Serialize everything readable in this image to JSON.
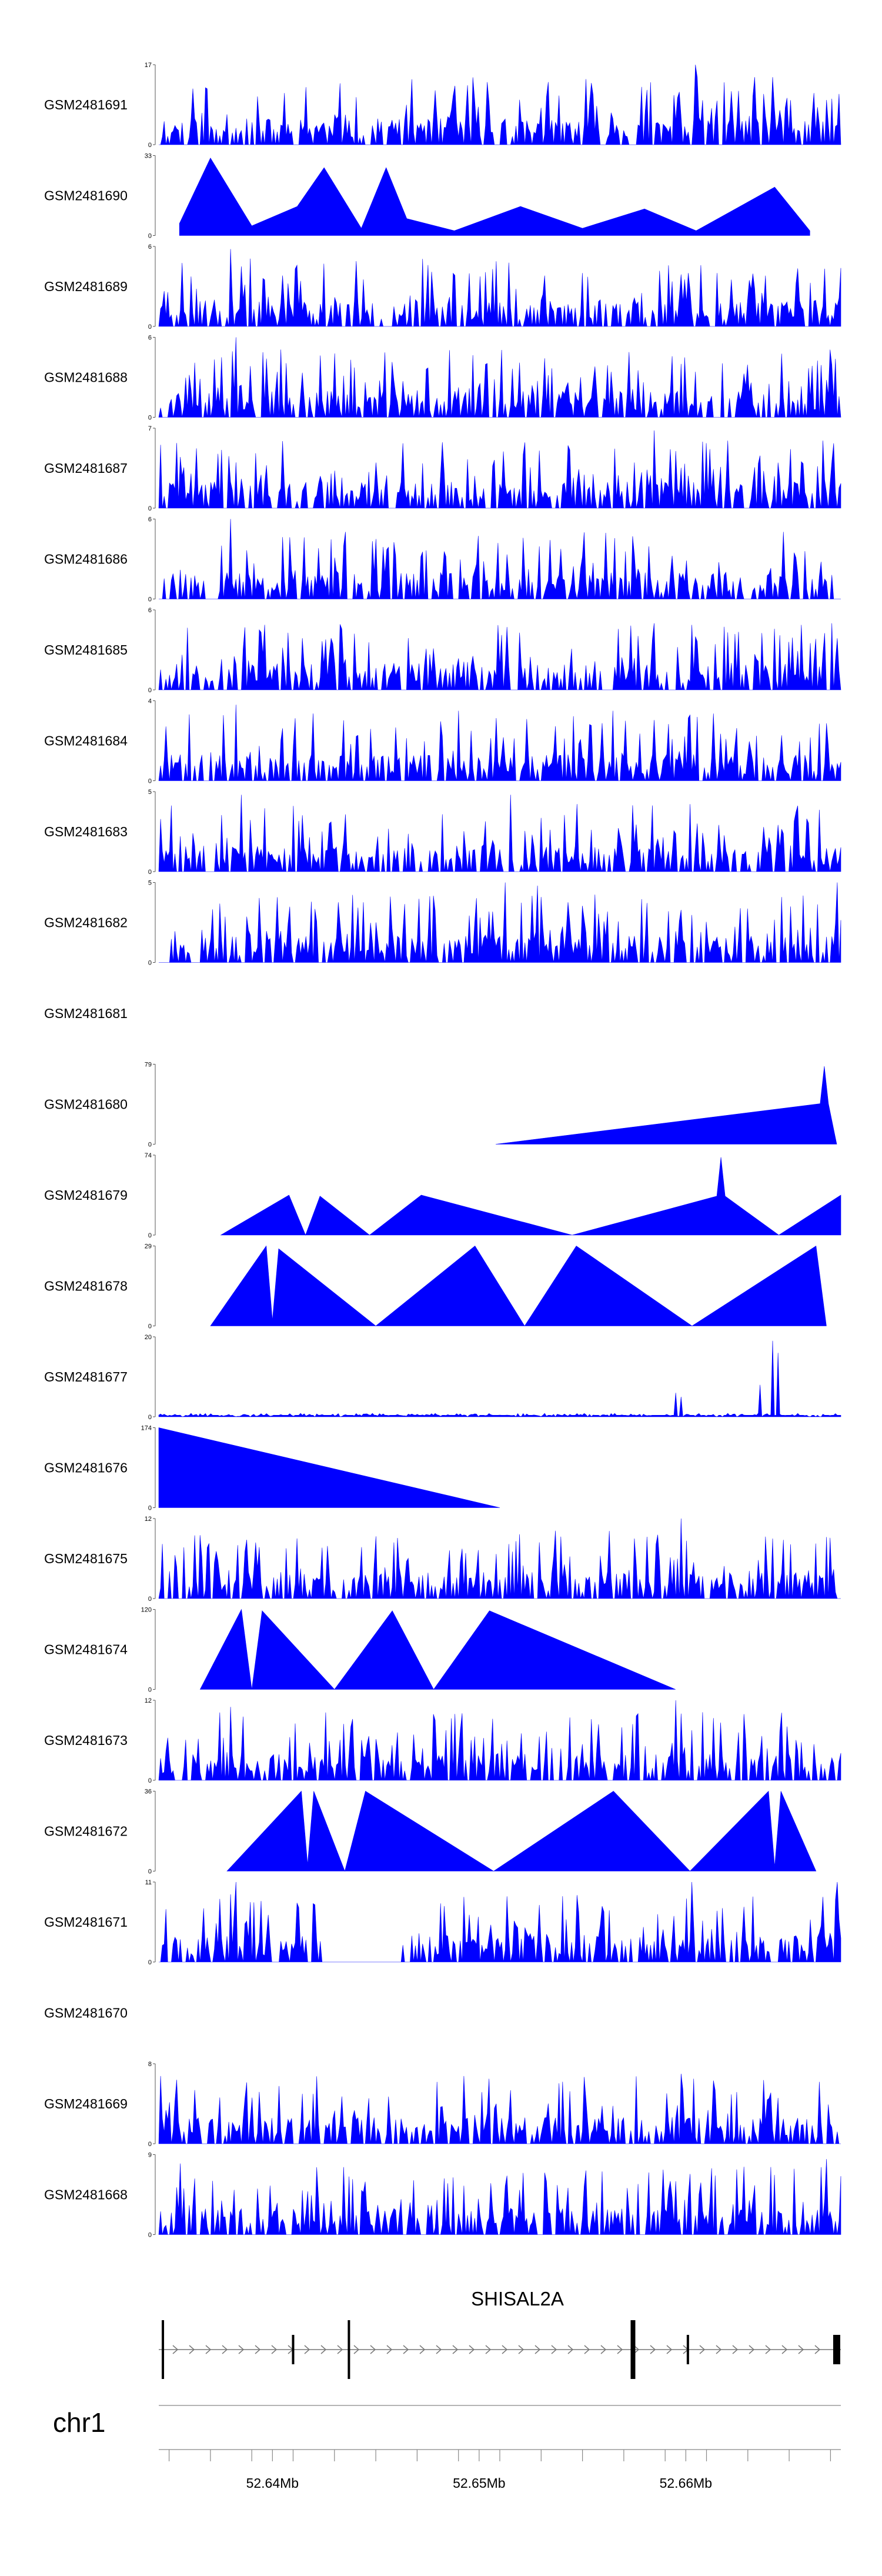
{
  "chart_data": {
    "type": "area",
    "title": "",
    "xlabel": "",
    "ylabel": "",
    "chromosome": "chr1",
    "x_range": [
      52.6345,
      52.6675
    ],
    "x_unit": "Mb",
    "x_ticks": [
      52.64,
      52.65,
      52.66
    ],
    "x_tick_labels": [
      "52.64Mb",
      "52.65Mb",
      "52.66Mb"
    ],
    "fill_color": "#0000ff",
    "gene": {
      "name": "SHISAL2A",
      "start": 52.6345,
      "end": 52.6675,
      "strand": "+",
      "exon_positions": [
        52.6347,
        52.641,
        52.6437,
        52.6575,
        52.6601,
        52.6673
      ]
    },
    "tracks": [
      {
        "name": "GSM2481691",
        "ymax": 17,
        "ymin": 0,
        "mode": "dense",
        "seed": 11,
        "peaks": [
          {
            "x": 52.6605,
            "y": 17
          },
          {
            "x": 52.6668,
            "y": 9.5
          },
          {
            "x": 52.6598,
            "y": 6
          },
          {
            "x": 52.6415,
            "y": 4
          }
        ]
      },
      {
        "name": "GSM2481690",
        "ymax": 33,
        "ymin": 0,
        "mode": "sparse",
        "points": [
          [
            52.6355,
            5
          ],
          [
            52.637,
            32
          ],
          [
            52.639,
            4
          ],
          [
            52.6412,
            12
          ],
          [
            52.6425,
            28
          ],
          [
            52.6443,
            3
          ],
          [
            52.6455,
            28
          ],
          [
            52.6465,
            7
          ],
          [
            52.6488,
            2
          ],
          [
            52.652,
            12
          ],
          [
            52.655,
            3
          ],
          [
            52.658,
            11
          ],
          [
            52.6605,
            2
          ],
          [
            52.6643,
            20
          ],
          [
            52.666,
            2
          ]
        ]
      },
      {
        "name": "GSM2481689",
        "ymax": 6,
        "ymin": 0,
        "mode": "dense",
        "seed": 23,
        "peaks": [
          {
            "x": 52.638,
            "y": 5.8
          },
          {
            "x": 52.6385,
            "y": 4.5
          },
          {
            "x": 52.655,
            "y": 4
          },
          {
            "x": 52.6615,
            "y": 4
          }
        ]
      },
      {
        "name": "GSM2481688",
        "ymax": 6,
        "ymin": 0,
        "mode": "dense",
        "seed": 37,
        "peaks": [
          {
            "x": 52.6382,
            "y": 6
          },
          {
            "x": 52.6375,
            "y": 4.5
          },
          {
            "x": 52.6598,
            "y": 4
          }
        ]
      },
      {
        "name": "GSM2481687",
        "ymax": 7,
        "ymin": 0,
        "mode": "dense",
        "seed": 41,
        "peaks": [
          {
            "x": 52.6585,
            "y": 6.8
          },
          {
            "x": 52.6595,
            "y": 5
          },
          {
            "x": 52.6382,
            "y": 4
          }
        ]
      },
      {
        "name": "GSM2481686",
        "ymax": 6,
        "ymin": 0,
        "mode": "dense",
        "seed": 53,
        "peaks": [
          {
            "x": 52.638,
            "y": 6
          },
          {
            "x": 52.6375,
            "y": 4
          }
        ]
      },
      {
        "name": "GSM2481685",
        "ymax": 6,
        "ymin": 0,
        "mode": "dense",
        "seed": 67,
        "peaks": [
          {
            "x": 52.6585,
            "y": 5
          },
          {
            "x": 52.6605,
            "y": 4
          }
        ]
      },
      {
        "name": "GSM2481684",
        "ymax": 4,
        "ymin": 0,
        "mode": "dense",
        "seed": 71,
        "peaks": [
          {
            "x": 52.6382,
            "y": 3.8
          },
          {
            "x": 52.649,
            "y": 3.5
          },
          {
            "x": 52.6565,
            "y": 3.5
          }
        ]
      },
      {
        "name": "GSM2481683",
        "ymax": 5,
        "ymin": 0,
        "mode": "dense",
        "seed": 83,
        "peaks": [
          {
            "x": 52.6385,
            "y": 4.8
          },
          {
            "x": 52.6515,
            "y": 4.8
          }
        ]
      },
      {
        "name": "GSM2481682",
        "ymax": 5,
        "ymin": 0,
        "mode": "dense",
        "seed": 97,
        "peaks": [
          {
            "x": 52.6513,
            "y": 5
          },
          {
            "x": 52.6528,
            "y": 4.8
          },
          {
            "x": 52.6673,
            "y": 5
          }
        ]
      },
      {
        "name": "GSM2481681",
        "empty": true
      },
      {
        "name": "GSM2481680",
        "ymax": 79,
        "ymin": 0,
        "mode": "sparse",
        "points": [
          [
            52.6508,
            0
          ],
          [
            52.6665,
            40
          ],
          [
            52.6667,
            77
          ],
          [
            52.6669,
            40
          ],
          [
            52.6673,
            0
          ]
        ]
      },
      {
        "name": "GSM2481679",
        "ymax": 74,
        "ymin": 0,
        "mode": "sparse",
        "points": [
          [
            52.6375,
            0
          ],
          [
            52.6408,
            37
          ],
          [
            52.6416,
            0
          ],
          [
            52.6423,
            36
          ],
          [
            52.6447,
            0
          ],
          [
            52.6472,
            37
          ],
          [
            52.6545,
            0
          ],
          [
            52.6615,
            36
          ],
          [
            52.6617,
            72
          ],
          [
            52.6619,
            36
          ],
          [
            52.6645,
            0
          ],
          [
            52.6675,
            37
          ]
        ]
      },
      {
        "name": "GSM2481678",
        "ymax": 29,
        "ymin": 0,
        "mode": "sparse",
        "points": [
          [
            52.637,
            0
          ],
          [
            52.6397,
            29
          ],
          [
            52.64,
            2
          ],
          [
            52.6403,
            28
          ],
          [
            52.645,
            0
          ],
          [
            52.6498,
            29
          ],
          [
            52.6522,
            0
          ],
          [
            52.6547,
            29
          ],
          [
            52.6603,
            0
          ],
          [
            52.6663,
            29
          ],
          [
            52.6668,
            0
          ]
        ]
      },
      {
        "name": "GSM2481677",
        "ymax": 20,
        "ymin": 0,
        "mode": "dense",
        "seed": 101,
        "low": true,
        "peaks": [
          {
            "x": 52.6642,
            "y": 19
          },
          {
            "x": 52.6645,
            "y": 16
          },
          {
            "x": 52.6595,
            "y": 6
          },
          {
            "x": 52.6598,
            "y": 5
          },
          {
            "x": 52.6636,
            "y": 8
          }
        ]
      },
      {
        "name": "GSM2481676",
        "ymax": 174,
        "ymin": 0,
        "mode": "sparse",
        "points": [
          [
            52.6345,
            174
          ],
          [
            52.651,
            0
          ]
        ]
      },
      {
        "name": "GSM2481675",
        "ymax": 12,
        "ymin": 0,
        "mode": "dense",
        "seed": 113,
        "peaks": [
          {
            "x": 52.6383,
            "y": 8
          },
          {
            "x": 52.6598,
            "y": 12
          },
          {
            "x": 52.6575,
            "y": 9
          },
          {
            "x": 52.6642,
            "y": 9
          }
        ]
      },
      {
        "name": "GSM2481674",
        "ymax": 120,
        "ymin": 0,
        "mode": "sparse",
        "points": [
          [
            52.6365,
            0
          ],
          [
            52.6385,
            120
          ],
          [
            52.639,
            0
          ],
          [
            52.6395,
            118
          ],
          [
            52.643,
            0
          ],
          [
            52.6458,
            118
          ],
          [
            52.6478,
            0
          ],
          [
            52.6505,
            118
          ],
          [
            52.6595,
            0
          ]
        ]
      },
      {
        "name": "GSM2481673",
        "ymax": 12,
        "ymin": 0,
        "mode": "dense",
        "seed": 127,
        "peaks": [
          {
            "x": 52.638,
            "y": 11
          },
          {
            "x": 52.6595,
            "y": 12
          },
          {
            "x": 52.6598,
            "y": 10
          }
        ]
      },
      {
        "name": "GSM2481672",
        "ymax": 36,
        "ymin": 0,
        "mode": "sparse",
        "points": [
          [
            52.6378,
            0
          ],
          [
            52.6414,
            36
          ],
          [
            52.6417,
            3
          ],
          [
            52.642,
            36
          ],
          [
            52.6435,
            0
          ],
          [
            52.6445,
            36
          ],
          [
            52.6507,
            0
          ],
          [
            52.6565,
            36
          ],
          [
            52.6602,
            0
          ],
          [
            52.664,
            36
          ],
          [
            52.6643,
            2
          ],
          [
            52.6646,
            36
          ],
          [
            52.6663,
            0
          ]
        ]
      },
      {
        "name": "GSM2481671",
        "ymax": 11,
        "ymin": 0,
        "mode": "dense",
        "seed": 131,
        "peaks": [
          {
            "x": 52.6382,
            "y": 11
          },
          {
            "x": 52.6413,
            "y": 7.5
          },
          {
            "x": 52.6603,
            "y": 11
          },
          {
            "x": 52.6673,
            "y": 11
          }
        ],
        "gaps": [
          [
            52.6425,
            52.6462
          ]
        ]
      },
      {
        "name": "GSM2481670",
        "empty": true
      },
      {
        "name": "GSM2481669",
        "ymax": 8,
        "ymin": 0,
        "mode": "dense",
        "seed": 139,
        "peaks": [
          {
            "x": 52.6505,
            "y": 6.5
          },
          {
            "x": 52.6598,
            "y": 7
          }
        ]
      },
      {
        "name": "GSM2481668",
        "ymax": 9,
        "ymin": 0,
        "mode": "dense",
        "seed": 149,
        "peaks": [
          {
            "x": 52.6355,
            "y": 8
          },
          {
            "x": 52.6668,
            "y": 8.5
          }
        ]
      }
    ]
  }
}
